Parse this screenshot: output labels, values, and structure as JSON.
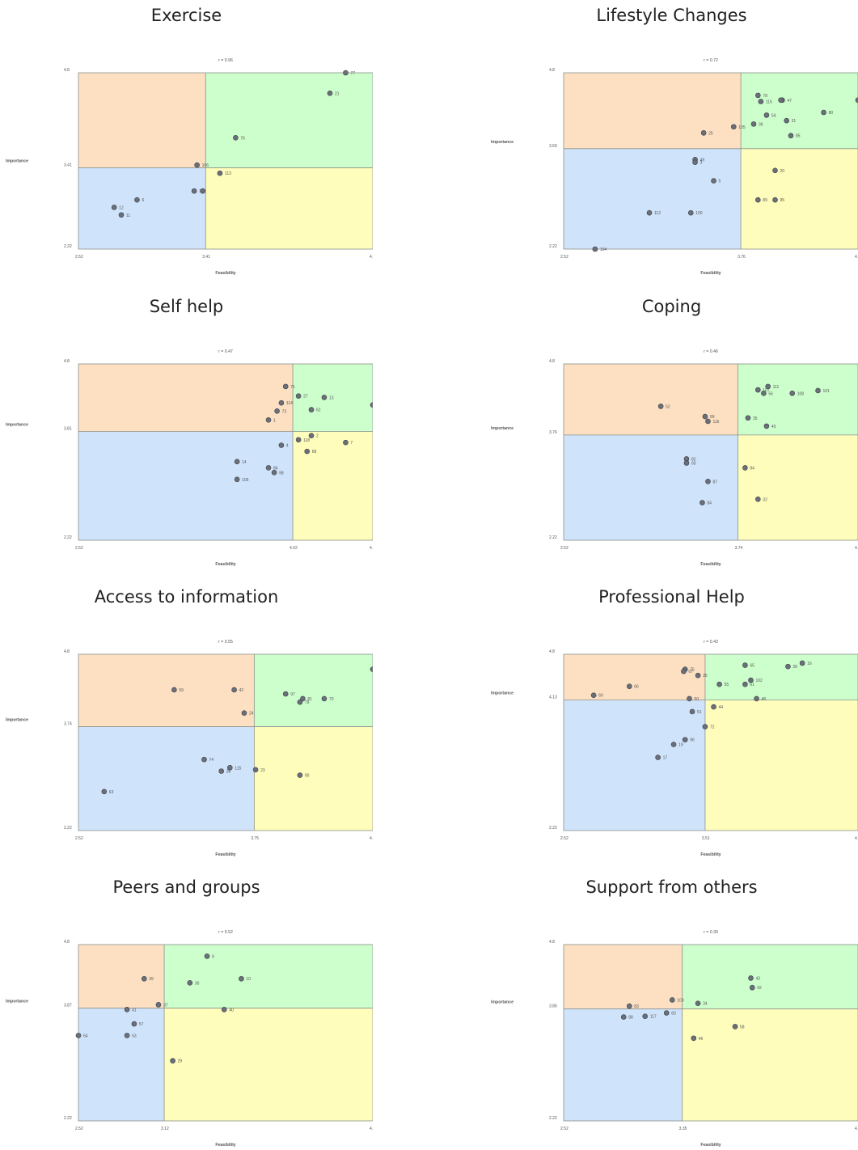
{
  "colors": {
    "top_left": "#fde0c2",
    "top_right": "#ccffcc",
    "bottom_left": "#cfe4fb",
    "bottom_right": "#fffdbb",
    "point": "#6b6f7a",
    "divider": "#8a8f8a"
  },
  "chart_data": [
    {
      "type": "scatter",
      "title": "Exercise",
      "subtitle": "r = 0.96",
      "xlabel": "Feasibility",
      "ylabel": "Importance",
      "xlim": [
        2.52,
        4.58
      ],
      "ylim": [
        2.22,
        4.8
      ],
      "x_ticks": [
        "2.52",
        "3.41",
        "4.58"
      ],
      "y_ticks": [
        "2.22",
        "3.41",
        "4.8"
      ],
      "x_mid": 3.41,
      "y_mid": 3.41,
      "points": [
        {
          "label": "77",
          "x": 4.39,
          "y": 4.8
        },
        {
          "label": "21",
          "x": 4.28,
          "y": 4.5
        },
        {
          "label": "76",
          "x": 3.62,
          "y": 3.85
        },
        {
          "label": "106",
          "x": 3.35,
          "y": 3.45
        },
        {
          "label": "113",
          "x": 3.51,
          "y": 3.33
        },
        {
          "label": "110",
          "x": 3.33,
          "y": 3.07
        },
        {
          "label": "6",
          "x": 2.93,
          "y": 2.94
        },
        {
          "label": "12",
          "x": 2.77,
          "y": 2.83
        },
        {
          "label": "11",
          "x": 2.82,
          "y": 2.72
        }
      ],
      "unlabeled_points": [
        {
          "x": 3.39,
          "y": 3.07
        }
      ]
    },
    {
      "type": "scatter",
      "title": "Lifestyle Changes",
      "subtitle": "r = 0.72",
      "xlabel": "Feasibility",
      "ylabel": "Importance",
      "xlim": [
        2.52,
        4.58
      ],
      "ylim": [
        2.22,
        4.8
      ],
      "x_ticks": [
        "2.52",
        "3.76",
        "4.58"
      ],
      "y_ticks": [
        "2.22",
        "3.69",
        "4.8"
      ],
      "x_mid": 3.76,
      "y_mid": 3.69,
      "points": [
        {
          "label": "78",
          "x": 3.88,
          "y": 4.47
        },
        {
          "label": "115",
          "x": 3.9,
          "y": 4.38
        },
        {
          "label": "47",
          "x": 4.05,
          "y": 4.4
        },
        {
          "label": "54",
          "x": 3.94,
          "y": 4.18
        },
        {
          "label": "80",
          "x": 4.34,
          "y": 4.22
        },
        {
          "label": "31",
          "x": 4.08,
          "y": 4.1
        },
        {
          "label": "36",
          "x": 3.85,
          "y": 4.05
        },
        {
          "label": "105",
          "x": 3.71,
          "y": 4.01
        },
        {
          "label": "25",
          "x": 3.5,
          "y": 3.92
        },
        {
          "label": "85",
          "x": 4.11,
          "y": 3.88
        },
        {
          "label": "49",
          "x": 3.44,
          "y": 3.53
        },
        {
          "label": "3",
          "x": 3.44,
          "y": 3.49
        },
        {
          "label": "20",
          "x": 4.0,
          "y": 3.37
        },
        {
          "label": "5",
          "x": 3.57,
          "y": 3.22
        },
        {
          "label": "89",
          "x": 3.88,
          "y": 2.94
        },
        {
          "label": "95",
          "x": 4.0,
          "y": 2.94
        },
        {
          "label": "112",
          "x": 3.12,
          "y": 2.75
        },
        {
          "label": "100",
          "x": 3.41,
          "y": 2.75
        },
        {
          "label": "104",
          "x": 2.74,
          "y": 2.22
        }
      ],
      "unlabeled_points": [
        {
          "x": 4.04,
          "y": 4.4
        },
        {
          "x": 4.58,
          "y": 4.4
        }
      ]
    },
    {
      "type": "scatter",
      "title": "Self help",
      "subtitle": "r = 0.47",
      "xlabel": "Feasibility",
      "ylabel": "Importance",
      "xlim": [
        2.52,
        4.58
      ],
      "ylim": [
        2.22,
        4.8
      ],
      "x_ticks": [
        "2.52",
        "4.02",
        "4.58"
      ],
      "y_ticks": [
        "2.22",
        "3.81",
        "4.8"
      ],
      "x_mid": 4.02,
      "y_mid": 3.81,
      "points": [
        {
          "label": "71",
          "x": 3.97,
          "y": 4.47
        },
        {
          "label": "27",
          "x": 4.06,
          "y": 4.33
        },
        {
          "label": "13",
          "x": 4.24,
          "y": 4.31
        },
        {
          "label": "114",
          "x": 3.94,
          "y": 4.23
        },
        {
          "label": "22",
          "x": 4.58,
          "y": 4.2
        },
        {
          "label": "73",
          "x": 3.91,
          "y": 4.11
        },
        {
          "label": "62",
          "x": 4.15,
          "y": 4.13
        },
        {
          "label": "1",
          "x": 3.85,
          "y": 3.98
        },
        {
          "label": "2",
          "x": 4.15,
          "y": 3.75
        },
        {
          "label": "118",
          "x": 4.06,
          "y": 3.69
        },
        {
          "label": "7",
          "x": 4.39,
          "y": 3.65
        },
        {
          "label": "4",
          "x": 3.94,
          "y": 3.61
        },
        {
          "label": "68",
          "x": 4.12,
          "y": 3.52
        },
        {
          "label": "14",
          "x": 3.63,
          "y": 3.37
        },
        {
          "label": "86",
          "x": 3.85,
          "y": 3.28
        },
        {
          "label": "98",
          "x": 3.89,
          "y": 3.21
        },
        {
          "label": "109",
          "x": 3.63,
          "y": 3.11
        }
      ],
      "unlabeled_points": []
    },
    {
      "type": "scatter",
      "title": "Coping",
      "subtitle": "r = 0.46",
      "xlabel": "Feasibility",
      "ylabel": "Importance",
      "xlim": [
        2.52,
        4.58
      ],
      "ylim": [
        2.22,
        4.8
      ],
      "x_ticks": [
        "2.52",
        "3.74",
        "4.58"
      ],
      "y_ticks": [
        "2.22",
        "3.76",
        "4.8"
      ],
      "x_mid": 3.74,
      "y_mid": 3.76,
      "points": [
        {
          "label": "111",
          "x": 3.95,
          "y": 4.47
        },
        {
          "label": "107",
          "x": 3.88,
          "y": 4.42
        },
        {
          "label": "56",
          "x": 3.92,
          "y": 4.37
        },
        {
          "label": "108",
          "x": 4.12,
          "y": 4.37
        },
        {
          "label": "101",
          "x": 4.3,
          "y": 4.41
        },
        {
          "label": "52",
          "x": 3.2,
          "y": 4.18
        },
        {
          "label": "99",
          "x": 3.51,
          "y": 4.03
        },
        {
          "label": "116",
          "x": 3.53,
          "y": 3.96
        },
        {
          "label": "35",
          "x": 3.81,
          "y": 4.01
        },
        {
          "label": "45",
          "x": 3.94,
          "y": 3.89
        },
        {
          "label": "82",
          "x": 3.38,
          "y": 3.41
        },
        {
          "label": "93",
          "x": 3.38,
          "y": 3.35
        },
        {
          "label": "94",
          "x": 3.79,
          "y": 3.28
        },
        {
          "label": "87",
          "x": 3.53,
          "y": 3.08
        },
        {
          "label": "84",
          "x": 3.49,
          "y": 2.77
        },
        {
          "label": "32",
          "x": 3.88,
          "y": 2.82
        }
      ],
      "unlabeled_points": []
    },
    {
      "type": "scatter",
      "title": "Access to information",
      "subtitle": "r = 0.55",
      "xlabel": "Feasibility",
      "ylabel": "Importance",
      "xlim": [
        2.52,
        4.58
      ],
      "ylim": [
        2.22,
        4.8
      ],
      "x_ticks": [
        "2.52",
        "3.75",
        "4.58"
      ],
      "y_ticks": [
        "2.22",
        "3.74",
        "4.8"
      ],
      "x_mid": 3.75,
      "y_mid": 3.74,
      "points": [
        {
          "label": "15",
          "x": 4.58,
          "y": 4.58
        },
        {
          "label": "59",
          "x": 3.19,
          "y": 4.28
        },
        {
          "label": "42",
          "x": 3.61,
          "y": 4.28
        },
        {
          "label": "97",
          "x": 3.97,
          "y": 4.22
        },
        {
          "label": "81",
          "x": 4.09,
          "y": 4.15
        },
        {
          "label": "79",
          "x": 4.07,
          "y": 4.1
        },
        {
          "label": "70",
          "x": 4.24,
          "y": 4.15
        },
        {
          "label": "24",
          "x": 3.68,
          "y": 3.94
        },
        {
          "label": "74",
          "x": 3.4,
          "y": 3.26
        },
        {
          "label": "115",
          "x": 3.58,
          "y": 3.14
        },
        {
          "label": "38",
          "x": 3.52,
          "y": 3.09
        },
        {
          "label": "23",
          "x": 3.76,
          "y": 3.11
        },
        {
          "label": "90",
          "x": 4.07,
          "y": 3.03
        },
        {
          "label": "63",
          "x": 2.7,
          "y": 2.79
        }
      ],
      "unlabeled_points": []
    },
    {
      "type": "scatter",
      "title": "Professional Help",
      "subtitle": "r = 0.43",
      "xlabel": "Feasibility",
      "ylabel": "Importance",
      "xlim": [
        2.52,
        4.58
      ],
      "ylim": [
        2.22,
        4.8
      ],
      "x_ticks": [
        "2.52",
        "3.51",
        "4.58"
      ],
      "y_ticks": [
        "2.22",
        "4.13",
        "4.8"
      ],
      "x_mid": 3.51,
      "y_mid": 4.13,
      "points": [
        {
          "label": "16",
          "x": 4.19,
          "y": 4.67
        },
        {
          "label": "28",
          "x": 4.09,
          "y": 4.62
        },
        {
          "label": "65",
          "x": 3.79,
          "y": 4.64
        },
        {
          "label": "75",
          "x": 3.37,
          "y": 4.58
        },
        {
          "label": "67",
          "x": 3.36,
          "y": 4.55
        },
        {
          "label": "26",
          "x": 3.46,
          "y": 4.49
        },
        {
          "label": "102",
          "x": 3.83,
          "y": 4.42
        },
        {
          "label": "55",
          "x": 3.61,
          "y": 4.36
        },
        {
          "label": "61",
          "x": 3.79,
          "y": 4.36
        },
        {
          "label": "66",
          "x": 2.98,
          "y": 4.33
        },
        {
          "label": "69",
          "x": 2.73,
          "y": 4.2
        },
        {
          "label": "50",
          "x": 3.4,
          "y": 4.15
        },
        {
          "label": "48",
          "x": 3.87,
          "y": 4.15
        },
        {
          "label": "44",
          "x": 3.57,
          "y": 4.03
        },
        {
          "label": "51",
          "x": 3.42,
          "y": 3.96
        },
        {
          "label": "72",
          "x": 3.51,
          "y": 3.74
        },
        {
          "label": "96",
          "x": 3.37,
          "y": 3.55
        },
        {
          "label": "19",
          "x": 3.29,
          "y": 3.48
        },
        {
          "label": "17",
          "x": 3.18,
          "y": 3.29
        }
      ],
      "unlabeled_points": []
    },
    {
      "type": "scatter",
      "title": "Peers and groups",
      "subtitle": "r = 0.52",
      "xlabel": "Feasibility",
      "ylabel": "Importance",
      "xlim": [
        2.52,
        4.58
      ],
      "ylim": [
        2.22,
        4.8
      ],
      "x_ticks": [
        "2.52",
        "3.12",
        "4.58"
      ],
      "y_ticks": [
        "2.22",
        "3.87",
        "4.8"
      ],
      "x_mid": 3.12,
      "y_mid": 3.87,
      "points": [
        {
          "label": "9",
          "x": 3.42,
          "y": 4.63
        },
        {
          "label": "39",
          "x": 2.98,
          "y": 4.3
        },
        {
          "label": "10",
          "x": 3.66,
          "y": 4.3
        },
        {
          "label": "30",
          "x": 3.3,
          "y": 4.24
        },
        {
          "label": "37",
          "x": 3.08,
          "y": 3.92
        },
        {
          "label": "41",
          "x": 2.86,
          "y": 3.85
        },
        {
          "label": "40",
          "x": 3.54,
          "y": 3.85
        },
        {
          "label": "57",
          "x": 2.91,
          "y": 3.64
        },
        {
          "label": "64",
          "x": 2.52,
          "y": 3.47
        },
        {
          "label": "53",
          "x": 2.86,
          "y": 3.47
        },
        {
          "label": "29",
          "x": 3.18,
          "y": 3.1
        }
      ],
      "unlabeled_points": []
    },
    {
      "type": "scatter",
      "title": "Support from others",
      "subtitle": "r = 0.39",
      "xlabel": "Feasibility",
      "ylabel": "Importance",
      "xlim": [
        2.52,
        4.58
      ],
      "ylim": [
        2.22,
        4.8
      ],
      "x_ticks": [
        "2.52",
        "3.35",
        "4.58"
      ],
      "y_ticks": [
        "2.22",
        "3.86",
        "4.8"
      ],
      "x_mid": 3.35,
      "y_mid": 3.86,
      "points": [
        {
          "label": "43",
          "x": 3.83,
          "y": 4.31
        },
        {
          "label": "92",
          "x": 3.84,
          "y": 4.17
        },
        {
          "label": "103",
          "x": 3.28,
          "y": 3.99
        },
        {
          "label": "34",
          "x": 3.46,
          "y": 3.94
        },
        {
          "label": "83",
          "x": 2.98,
          "y": 3.9
        },
        {
          "label": "60",
          "x": 3.24,
          "y": 3.8
        },
        {
          "label": "117",
          "x": 3.09,
          "y": 3.75
        },
        {
          "label": "88",
          "x": 2.94,
          "y": 3.74
        },
        {
          "label": "58",
          "x": 3.72,
          "y": 3.6
        },
        {
          "label": "46",
          "x": 3.43,
          "y": 3.43
        }
      ],
      "unlabeled_points": []
    }
  ]
}
